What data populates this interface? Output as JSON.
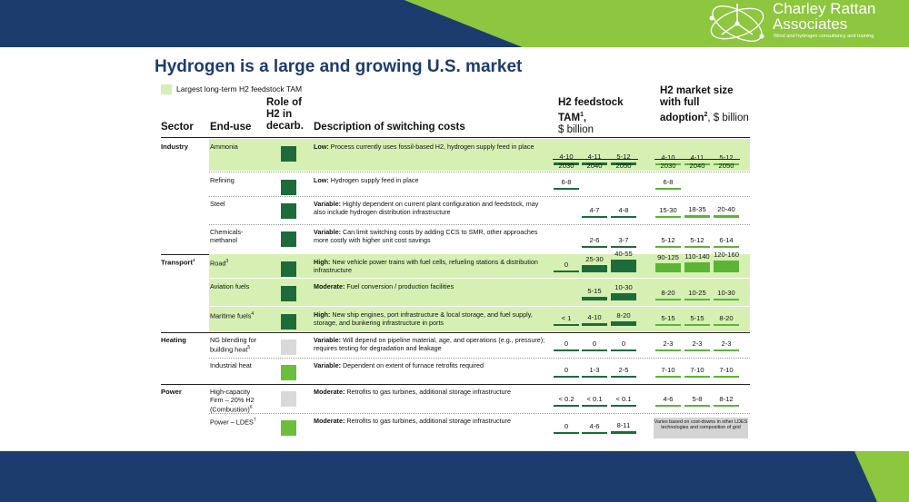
{
  "logo": {
    "line1": "Charley Rattan",
    "line2": "Associates",
    "tagline": "Wind and hydrogen consultancy and training"
  },
  "title": "Hydrogen is a large and growing U.S. market",
  "legend": "Largest long-term H2 feedstock TAM",
  "headers": {
    "sector": "Sector",
    "enduse": "End-use",
    "role": "Role of H2 in decarb.",
    "desc": "Description of switching costs",
    "tam": "H2 feedstock TAM",
    "tam_unit": "$ billion",
    "market": "H2 market size with full adoption",
    "market_unit": "$ billion",
    "sup1": "1",
    "sup2": "2"
  },
  "years": [
    "2030",
    "2040",
    "2050"
  ],
  "colors": {
    "dark_green": "#1e6b3a",
    "light_green": "#6cbf3a",
    "gray": "#d9d9d9",
    "highlight": "#d6f0b4",
    "navy": "#1d3c6e",
    "band_green": "#8dc63f"
  },
  "rows": [
    {
      "sector": "Industry",
      "enduse": "Ammonia",
      "role": "dark",
      "desc_bold": "Low:",
      "desc": " Process currently uses fossil-based H2, hydrogen supply feed in place",
      "tam": [
        "4-10",
        "4-11",
        "5-12"
      ],
      "market": [
        "4-10",
        "4-11",
        "5-12"
      ]
    },
    {
      "sector": "",
      "enduse": "Refining",
      "role": "dark",
      "desc_bold": "Low:",
      "desc": " Hydrogen supply feed in place",
      "tam": [
        "6-8",
        "",
        ""
      ],
      "market": [
        "6-8",
        "",
        ""
      ]
    },
    {
      "sector": "",
      "enduse": "Steel",
      "role": "dark",
      "desc_bold": "Variable:",
      "desc": " Highly dependent on current plant configuration and feedstock, may also include hydrogen distribution infrastructure",
      "tam": [
        "",
        "4-7",
        "4-8"
      ],
      "market": [
        "15-30",
        "18-35",
        "20-40"
      ]
    },
    {
      "sector": "",
      "enduse": "Chemicals-methanol",
      "role": "dark",
      "desc_bold": "Variable:",
      "desc": " Can limit switching costs by adding CCS to SMR, other approaches more costly with higher unit cost savings",
      "tam": [
        "",
        "2-6",
        "3-7"
      ],
      "market": [
        "5-12",
        "5-12",
        "6-14"
      ]
    },
    {
      "sector": "Transport",
      "sector_sup": "1",
      "enduse": "Road",
      "enduse_sup": "3",
      "role": "dark",
      "desc_bold": "High:",
      "desc": " New vehicle power trains with fuel cells, refueling stations & distribution infrastructure",
      "tam": [
        "0",
        "25-30",
        "40-55"
      ],
      "market": [
        "90-125",
        "110-140",
        "120-160"
      ]
    },
    {
      "sector": "",
      "enduse": "Aviation fuels",
      "role": "dark",
      "desc_bold": "Moderate:",
      "desc": " Fuel conversion / production facilities",
      "tam": [
        "",
        "5-15",
        "10-30"
      ],
      "market": [
        "8-20",
        "10-25",
        "10-30"
      ]
    },
    {
      "sector": "",
      "enduse": "Maritime fuels",
      "enduse_sup": "4",
      "role": "dark",
      "desc_bold": "High:",
      "desc": " New ship engines, port infrastructure & local storage, and fuel supply, storage, and bunkering infrastructure in ports",
      "tam": [
        "< 1",
        "4-10",
        "8-20"
      ],
      "market": [
        "5-15",
        "5-15",
        "8-20"
      ]
    },
    {
      "sector": "Heating",
      "enduse": "NG blending for building heat",
      "enduse_sup": "5",
      "role": "gray",
      "desc_bold": "Variable:",
      "desc": " Will depend on pipeline material, age, and operations (e.g., pressure); requires testing for degradation and leakage",
      "tam": [
        "0",
        "0",
        "0"
      ],
      "market": [
        "2-3",
        "2-3",
        "2-3"
      ]
    },
    {
      "sector": "",
      "enduse": "Industrial heat",
      "role": "light",
      "desc_bold": "Variable:",
      "desc": " Dependent on extent of furnace retrofits required",
      "tam": [
        "0",
        "1-3",
        "2-5"
      ],
      "market": [
        "7-10",
        "7-10",
        "7-10"
      ]
    },
    {
      "sector": "Power",
      "enduse": "High-capacity Firm – 20% H2 (Combustion)",
      "enduse_sup": "6",
      "role": "gray",
      "desc_bold": "Moderate:",
      "desc": " Retrofits to gas turbines, additional storage infrastructure",
      "tam": [
        "< 0.2",
        "< 0.1",
        "< 0.1"
      ],
      "market": [
        "4-6",
        "5-8",
        "8-12"
      ]
    },
    {
      "sector": "",
      "enduse": "Power – LDES",
      "enduse_sup": "7",
      "role": "light",
      "desc_bold": "Moderate:",
      "desc": " Retrofits to gas turbines, additional storage infrastructure",
      "tam": [
        "0",
        "4-6",
        "8-11"
      ],
      "market_note": "Varies based on cost-downs in other LDES technologies and composition of grid"
    }
  ]
}
